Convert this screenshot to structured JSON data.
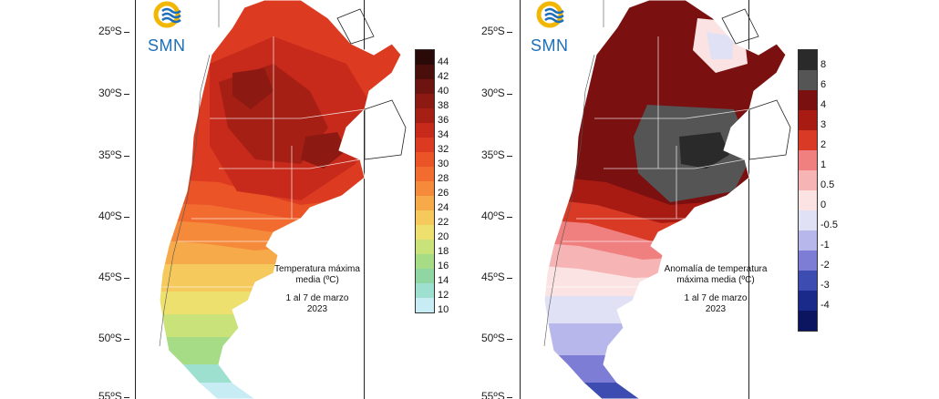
{
  "left_panel": {
    "logo_text": "SMN",
    "latitude_labels": [
      "25ºS",
      "30ºS",
      "35ºS",
      "40ºS",
      "45ºS",
      "50ºS",
      "55ºS"
    ],
    "title_lines": [
      "Temperatura máxima",
      "media (ºC)",
      "1 al 7 de marzo",
      "2023"
    ],
    "legend": {
      "labels": [
        "44",
        "42",
        "40",
        "38",
        "36",
        "34",
        "32",
        "30",
        "28",
        "26",
        "24",
        "22",
        "20",
        "18",
        "16",
        "14",
        "12",
        "10"
      ],
      "colors": [
        "#2a0a08",
        "#4a0f0b",
        "#6e1410",
        "#8d1a12",
        "#a51f15",
        "#c72a1b",
        "#dd3b21",
        "#ea5427",
        "#f26c2f",
        "#f58a3b",
        "#f6aa4a",
        "#f6c95c",
        "#eee06e",
        "#c9e27a",
        "#a6dc86",
        "#8fd6a3",
        "#9ee0d0",
        "#c8ecf4"
      ]
    }
  },
  "right_panel": {
    "logo_text": "SMN",
    "latitude_labels": [
      "25ºS",
      "30ºS",
      "35ºS",
      "40ºS",
      "45ºS",
      "50ºS",
      "55ºS"
    ],
    "title_lines": [
      "Anomalía de temperatura",
      "máxima media (ºC)",
      "1 al 7 de marzo",
      "2023"
    ],
    "legend": {
      "labels": [
        "8",
        "6",
        "4",
        "3",
        "2",
        "1",
        "0.5",
        "0",
        "-0.5",
        "-1",
        "-2",
        "-3",
        "-4"
      ],
      "colors": [
        "#2a2a2a",
        "#555555",
        "#7a1010",
        "#a81b12",
        "#d83a26",
        "#f08080",
        "#f7b4b4",
        "#fbe3e3",
        "#e1e1f6",
        "#b7b7ec",
        "#7d7dd6",
        "#3d4cb0",
        "#1a2a8a",
        "#0b1560"
      ]
    }
  },
  "colors": {
    "logo_blue": "#1e6fb8",
    "logo_yellow": "#f2b705"
  }
}
